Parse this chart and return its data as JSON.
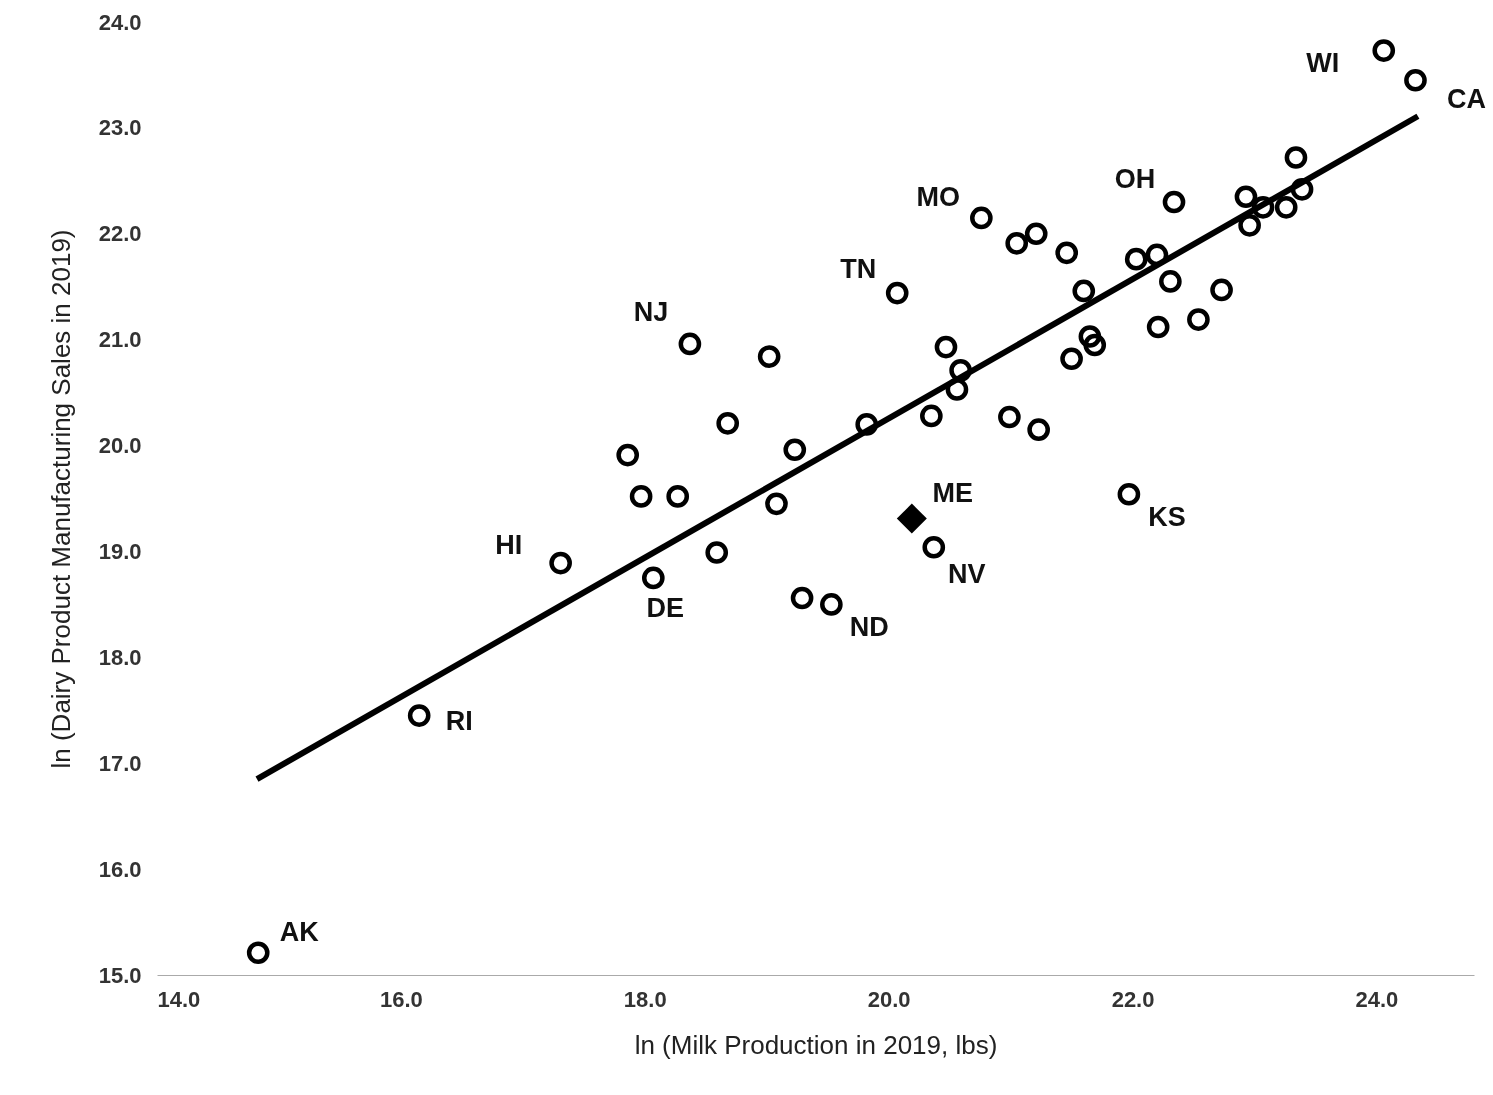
{
  "chart_data": {
    "type": "scatter",
    "xlabel": "ln (Milk Production in 2019, lbs)",
    "ylabel": "ln (Dairy Product Manufacturing Sales in 2019)",
    "xlim": [
      14,
      24.8
    ],
    "ylim": [
      15,
      24
    ],
    "xticks": [
      {
        "value": 14,
        "label": "14.0"
      },
      {
        "value": 16,
        "label": "16.0"
      },
      {
        "value": 18,
        "label": "18.0"
      },
      {
        "value": 20,
        "label": "20.0"
      },
      {
        "value": 22,
        "label": "22.0"
      },
      {
        "value": 24,
        "label": "24.0"
      }
    ],
    "yticks": [
      {
        "value": 15,
        "label": "15.0"
      },
      {
        "value": 16,
        "label": "16.0"
      },
      {
        "value": 17,
        "label": "17.0"
      },
      {
        "value": 18,
        "label": "18.0"
      },
      {
        "value": 19,
        "label": "19.0"
      },
      {
        "value": 20,
        "label": "20.0"
      },
      {
        "value": 21,
        "label": "21.0"
      },
      {
        "value": 22,
        "label": "22.0"
      },
      {
        "value": 23,
        "label": "23.0"
      },
      {
        "value": 24,
        "label": "24.0"
      }
    ],
    "grid": false,
    "series": [
      {
        "marker": "circle",
        "color": "#000000",
        "x": [
          14.83,
          16.15,
          17.31,
          18.07,
          17.86,
          17.97,
          18.27,
          18.59,
          18.68,
          18.37,
          19.02,
          19.23,
          19.08,
          19.29,
          19.53,
          19.82,
          20.07,
          20.37,
          20.35,
          20.47,
          20.59,
          20.56,
          20.76,
          21.05,
          21.21,
          20.99,
          21.23,
          21.46,
          21.6,
          21.5,
          21.65,
          21.69,
          21.97,
          22.03,
          22.2,
          22.31,
          22.21,
          22.34,
          22.54,
          22.73,
          22.93,
          22.96,
          23.07,
          23.26,
          23.39,
          23.34,
          24.06,
          24.32
        ],
        "values": [
          15.21,
          17.45,
          18.89,
          18.75,
          19.91,
          19.52,
          19.52,
          18.99,
          20.21,
          20.96,
          20.84,
          19.96,
          19.45,
          18.56,
          18.5,
          20.2,
          21.44,
          19.04,
          20.28,
          20.93,
          20.71,
          20.53,
          22.15,
          21.91,
          22.0,
          20.27,
          20.15,
          21.82,
          21.46,
          20.82,
          21.03,
          20.95,
          19.54,
          21.76,
          21.8,
          21.55,
          21.12,
          22.3,
          21.19,
          21.47,
          22.35,
          22.08,
          22.25,
          22.25,
          22.42,
          22.72,
          23.73,
          23.45
        ]
      },
      {
        "marker": "diamond",
        "color": "#000000",
        "x": [
          20.19
        ],
        "values": [
          19.31
        ]
      },
      {
        "type": "line",
        "marker": "none",
        "color": "#000000",
        "x": [
          14.82,
          24.34
        ],
        "values": [
          16.85,
          23.11
        ]
      }
    ],
    "annotations": [
      {
        "text": "WI",
        "x": 24.06,
        "y": 23.73
      },
      {
        "text": "CA",
        "x": 24.32,
        "y": 23.45
      },
      {
        "text": "OH",
        "x": 22.34,
        "y": 22.3
      },
      {
        "text": "MO",
        "x": 20.76,
        "y": 22.15
      },
      {
        "text": "TN",
        "x": 20.07,
        "y": 21.44
      },
      {
        "text": "NJ",
        "x": 18.37,
        "y": 20.96
      },
      {
        "text": "HI",
        "x": 17.31,
        "y": 18.89
      },
      {
        "text": "DE",
        "x": 18.07,
        "y": 18.75
      },
      {
        "text": "ND",
        "x": 19.53,
        "y": 18.5
      },
      {
        "text": "ME",
        "x": 20.19,
        "y": 19.31
      },
      {
        "text": "NV",
        "x": 20.37,
        "y": 19.04
      },
      {
        "text": "KS",
        "x": 21.97,
        "y": 19.54
      },
      {
        "text": "RI",
        "x": 16.15,
        "y": 17.45
      },
      {
        "text": "AK",
        "x": 14.83,
        "y": 15.21
      }
    ]
  }
}
